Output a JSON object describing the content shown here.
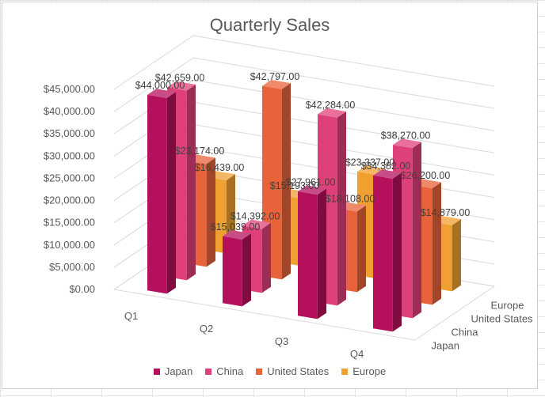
{
  "chart_data": {
    "type": "bar",
    "subtype": "3d-column",
    "title": "Quarterly Sales",
    "categories": [
      "Q1",
      "Q2",
      "Q3",
      "Q4"
    ],
    "series": [
      {
        "name": "Japan",
        "values": [
          44000,
          15039,
          27961,
          34382
        ],
        "labels": [
          "$44,000.00",
          "$15,039.00",
          "$27,961.00",
          "$34,382.00"
        ]
      },
      {
        "name": "China",
        "values": [
          42659,
          14392,
          42284,
          38270
        ],
        "labels": [
          "$42,659.00",
          "$14,392.00",
          "$42,284.00",
          "$38,270.00"
        ]
      },
      {
        "name": "United States",
        "values": [
          23174,
          42797,
          18108,
          26200
        ],
        "labels": [
          "$23,174.00",
          "$42,797.00",
          "$18,108.00",
          "$26,200.00"
        ]
      },
      {
        "name": "Europe",
        "values": [
          16439,
          15193,
          23337,
          14879
        ],
        "labels": [
          "$16,439.00",
          "$15,193.00",
          "$23,337.00",
          "$14,879.00"
        ]
      }
    ],
    "y_ticks": [
      "$0.00",
      "$5,000.00",
      "$10,000.00",
      "$15,000.00",
      "$20,000.00",
      "$25,000.00",
      "$30,000.00",
      "$35,000.00",
      "$40,000.00",
      "$45,000.00"
    ],
    "ylim": [
      0,
      45000
    ],
    "depth_labels": [
      "Japan",
      "China",
      "United States",
      "Europe"
    ],
    "legend_position": "bottom",
    "grid": true,
    "colors": {
      "Japan": "#b5105c",
      "China": "#e0407a",
      "United States": "#e8623a",
      "Europe": "#f0a030"
    }
  }
}
